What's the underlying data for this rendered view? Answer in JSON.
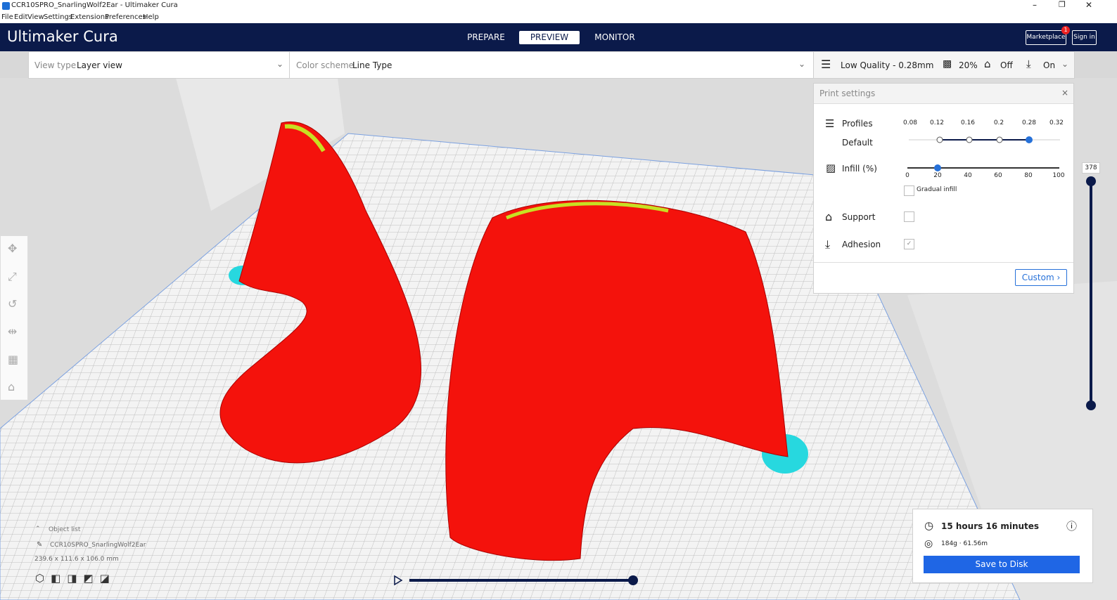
{
  "window": {
    "title": "CCR10SPRO_SnarlingWolf2Ear - Ultimaker Cura"
  },
  "menu": [
    "File",
    "Edit",
    "View",
    "Settings",
    "Extensions",
    "Preferences",
    "Help"
  ],
  "header": {
    "logo": "Ultimaker Cura",
    "tabs": [
      "PREPARE",
      "PREVIEW",
      "MONITOR"
    ],
    "marketplace": "Marketplace",
    "badge": "1",
    "sign_in": "Sign in"
  },
  "toolbar": {
    "view_type_label": "View type",
    "view_type": "Layer view",
    "color_scheme_label": "Color scheme",
    "color_scheme": "Line Type",
    "quality": "Low Quality - 0.28mm",
    "infill": "20%",
    "support": "Off",
    "adhesion": "On"
  },
  "print_settings": {
    "title": "Print settings",
    "profiles_label": "Profiles",
    "profile_ticks": [
      "0.08",
      "0.12",
      "0.16",
      "0.2",
      "0.28",
      "0.32"
    ],
    "default": "Default",
    "infill_label": "Infill (%)",
    "infill_ticks": [
      "0",
      "20",
      "40",
      "60",
      "80",
      "100"
    ],
    "gradual": "Gradual infill",
    "support": "Support",
    "adhesion": "Adhesion",
    "custom": "Custom"
  },
  "layer_slider": {
    "value": "378"
  },
  "object_list": {
    "label": "Object list",
    "name": "CCR10SPRO_SnarlingWolf2Ear",
    "dims": "239.6 x 111.6 x 106.0 mm"
  },
  "estimate": {
    "time": "15 hours 16 minutes",
    "material": "184g · 61.56m",
    "button": "Save to Disk"
  }
}
